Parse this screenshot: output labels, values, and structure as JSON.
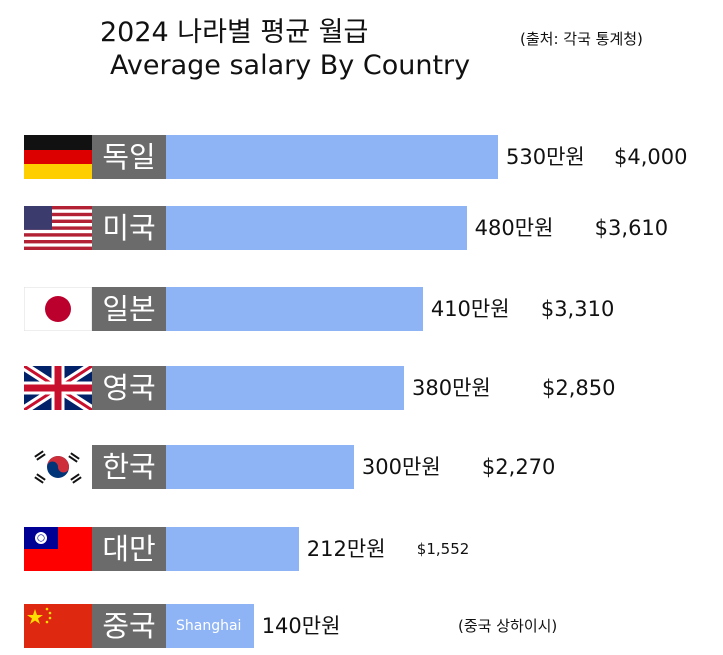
{
  "title": "2024 나라별 평균 월급",
  "subtitle": "Average salary By Country",
  "source": "(출처: 각국 통계청)",
  "colors": {
    "bar": "#8fb4f5",
    "name_box": "#6b6b6b"
  },
  "chart_data": {
    "type": "bar",
    "orientation": "horizontal",
    "categories": [
      "독일",
      "미국",
      "일본",
      "영국",
      "한국",
      "대만",
      "중국"
    ],
    "values_krw_manwon": [
      530,
      480,
      410,
      380,
      300,
      212,
      140
    ],
    "value_labels": [
      "530만원",
      "480만원",
      "410만원",
      "380만원",
      "300만원",
      "212만원",
      "140만원"
    ],
    "usd_labels": [
      "$4,000",
      "$3,610",
      "$3,310",
      "$2,850",
      "$2,270",
      "$1,552",
      ""
    ],
    "bar_inner_labels": [
      "",
      "",
      "",
      "",
      "",
      "",
      "Shanghai"
    ],
    "notes": [
      "",
      "",
      "",
      "",
      "",
      "",
      "(중국 상하이시)"
    ],
    "flags": [
      "germany-flag-icon",
      "usa-flag-icon",
      "japan-flag-icon",
      "uk-flag-icon",
      "korea-flag-icon",
      "taiwan-flag-icon",
      "china-flag-icon"
    ]
  }
}
